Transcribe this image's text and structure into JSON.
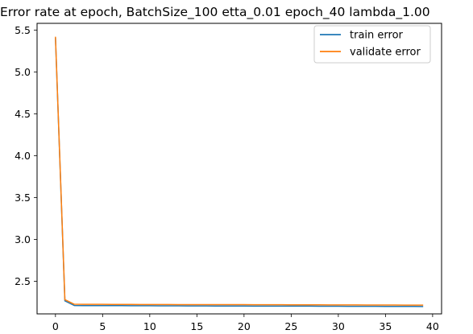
{
  "chart_data": {
    "type": "line",
    "title": "Error rate at epoch, BatchSize_100  etta_0.01 epoch_40 lambda_1.00",
    "xlabel": "",
    "ylabel": "",
    "xlim": [
      -1.95,
      40.95
    ],
    "ylim": [
      2.11,
      5.58
    ],
    "xticks": [
      0,
      5,
      10,
      15,
      20,
      25,
      30,
      35,
      40
    ],
    "yticks": [
      2.5,
      3.0,
      3.5,
      4.0,
      4.5,
      5.0,
      5.5
    ],
    "xtick_labels": [
      "0",
      "5",
      "10",
      "15",
      "20",
      "25",
      "30",
      "35",
      "40"
    ],
    "ytick_labels": [
      "2.5",
      "3.0",
      "3.5",
      "4.0",
      "4.5",
      "5.0",
      "5.5"
    ],
    "grid": false,
    "legend_position": "upper right",
    "x": [
      0,
      1,
      2,
      3,
      4,
      5,
      6,
      7,
      8,
      9,
      10,
      11,
      12,
      13,
      14,
      15,
      16,
      17,
      18,
      19,
      20,
      21,
      22,
      23,
      24,
      25,
      26,
      27,
      28,
      29,
      30,
      31,
      32,
      33,
      34,
      35,
      36,
      37,
      38,
      39
    ],
    "series": [
      {
        "name": "train error",
        "color": "#1f77b4",
        "values": [
          5.41,
          2.265,
          2.21,
          2.209,
          2.209,
          2.208,
          2.208,
          2.208,
          2.207,
          2.207,
          2.207,
          2.206,
          2.206,
          2.206,
          2.205,
          2.205,
          2.205,
          2.204,
          2.204,
          2.204,
          2.204,
          2.203,
          2.203,
          2.203,
          2.202,
          2.202,
          2.202,
          2.202,
          2.201,
          2.201,
          2.201,
          2.2,
          2.2,
          2.2,
          2.2,
          2.199,
          2.199,
          2.199,
          2.199,
          2.198
        ]
      },
      {
        "name": "validate error",
        "color": "#ff7f0e",
        "values": [
          5.42,
          2.28,
          2.225,
          2.224,
          2.224,
          2.224,
          2.223,
          2.223,
          2.223,
          2.222,
          2.222,
          2.222,
          2.222,
          2.221,
          2.221,
          2.221,
          2.221,
          2.22,
          2.22,
          2.22,
          2.22,
          2.219,
          2.219,
          2.219,
          2.219,
          2.218,
          2.218,
          2.218,
          2.218,
          2.217,
          2.217,
          2.217,
          2.217,
          2.216,
          2.216,
          2.216,
          2.216,
          2.215,
          2.215,
          2.215
        ]
      }
    ]
  }
}
